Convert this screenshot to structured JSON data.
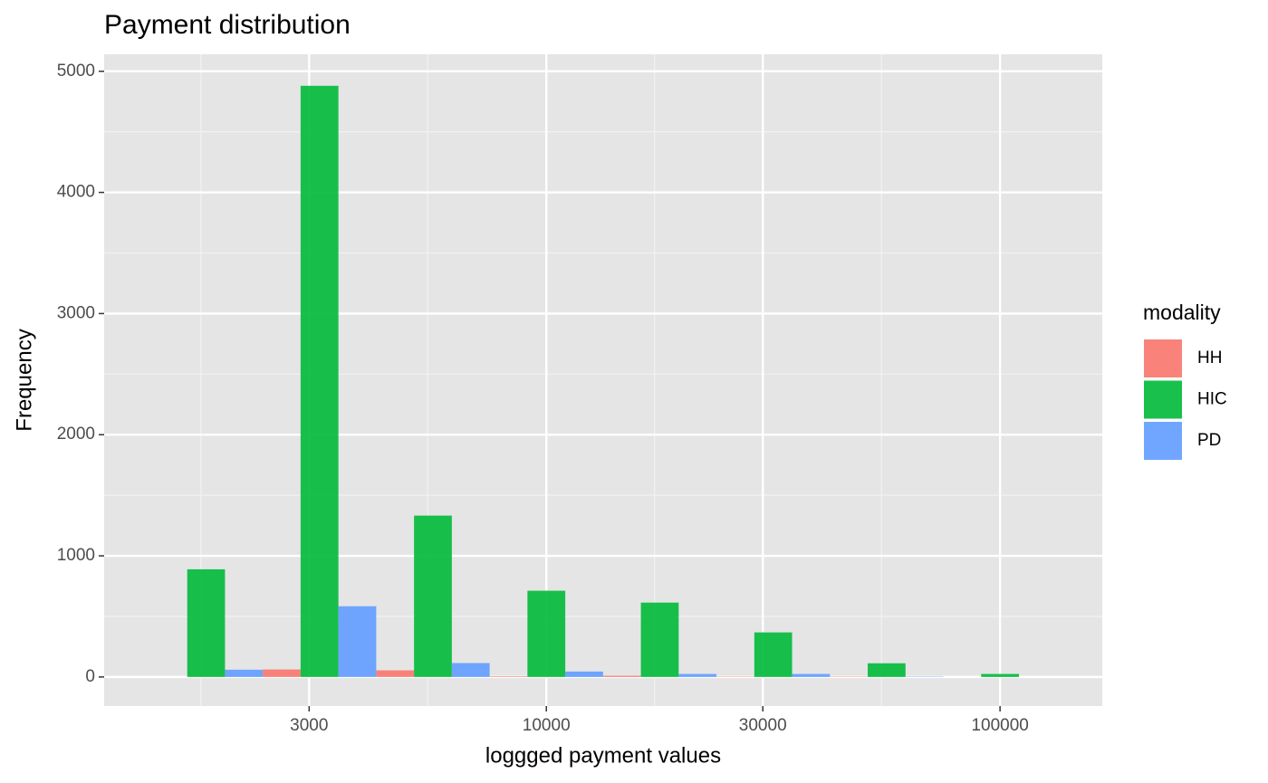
{
  "chart_data": {
    "type": "histogram",
    "title": "Payment distribution",
    "x_label": "loggged payment values",
    "y_label": "Frequency",
    "legend_title": "modality",
    "legend_position": "right",
    "x_log_scale": true,
    "grid": true,
    "bins": [
      1334,
      2371,
      4217,
      7499,
      13335,
      23714,
      42170,
      74989,
      133352
    ],
    "series": [
      {
        "name": "HH",
        "color": "#F8766D",
        "values": [
          0,
          62,
          55,
          5,
          10,
          3,
          3,
          0
        ]
      },
      {
        "name": "HIC",
        "color": "#00BA38",
        "values": [
          889,
          4880,
          1332,
          712,
          614,
          368,
          113,
          25
        ]
      },
      {
        "name": "PD",
        "color": "#619CFF",
        "values": [
          60,
          584,
          115,
          45,
          25,
          25,
          3,
          0
        ]
      }
    ],
    "xlim": [
      1060,
      168000
    ],
    "xticks": [
      3000,
      10000,
      30000,
      100000
    ],
    "xminor": [
      1732,
      5477,
      17321,
      54772
    ],
    "ylim": [
      -240,
      5140
    ],
    "yticks": [
      0,
      1000,
      2000,
      3000,
      4000,
      5000
    ],
    "yminor": [
      500,
      1500,
      2500,
      3500,
      4500
    ]
  }
}
